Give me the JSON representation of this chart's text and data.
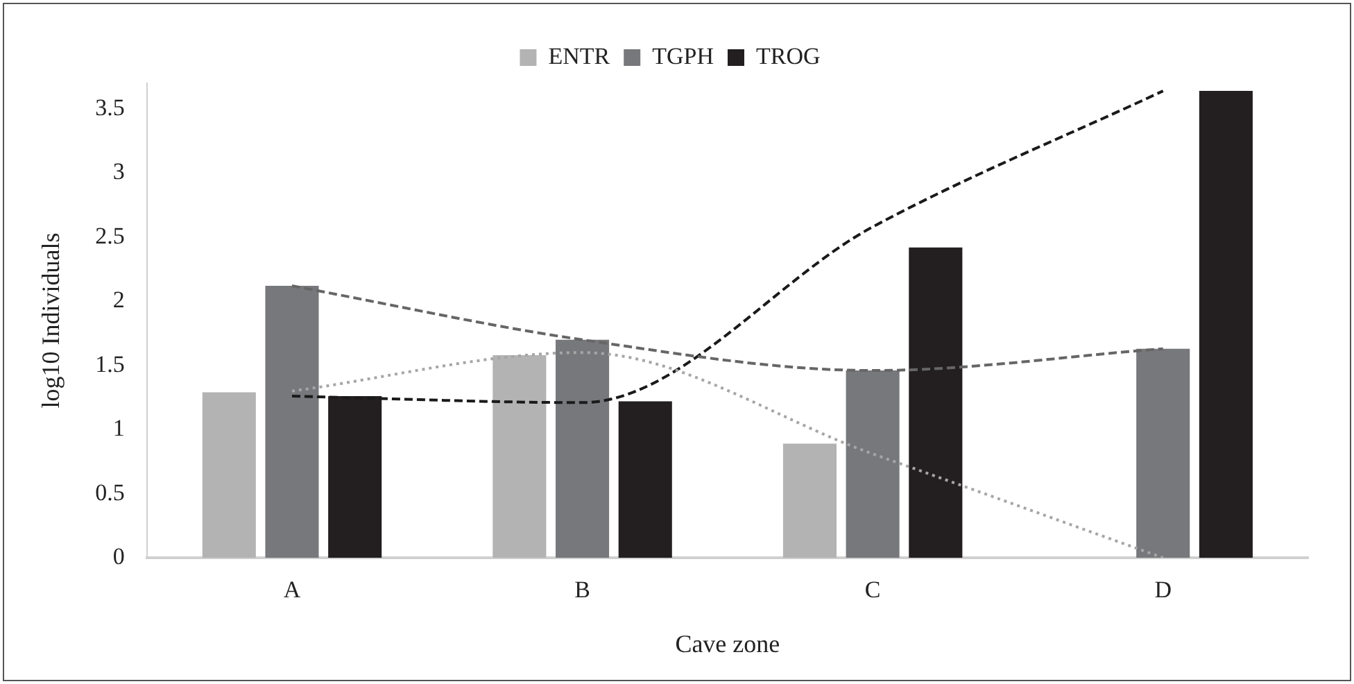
{
  "chart_data": {
    "type": "bar",
    "xlabel": "Cave zone",
    "ylabel": "log10 Individuals",
    "categories": [
      "A",
      "B",
      "C",
      "D"
    ],
    "series": [
      {
        "name": "ENTR",
        "color": "#b3b3b3",
        "values": [
          1.29,
          1.58,
          0.89,
          0
        ]
      },
      {
        "name": "TGPH",
        "color": "#77787b",
        "values": [
          2.12,
          1.7,
          1.46,
          1.63
        ]
      },
      {
        "name": "TROG",
        "color": "#231f20",
        "values": [
          1.26,
          1.22,
          2.42,
          3.64
        ]
      },
      {
        "type": "line",
        "x": [
          "A",
          "B",
          "C",
          "D"
        ],
        "color": "#a6a6a6",
        "line_style": "dotted",
        "values": [
          1.3,
          1.6,
          0.81,
          0
        ]
      },
      {
        "type": "line",
        "x": [
          "A",
          "B",
          "C",
          "D"
        ],
        "color": "#666666",
        "line_style": "dashed",
        "values": [
          2.12,
          1.7,
          1.46,
          1.63
        ]
      },
      {
        "type": "line",
        "x": [
          "A",
          "B",
          "C",
          "D"
        ],
        "color": "#1a1a1a",
        "line_style": "dashed",
        "values": [
          1.26,
          1.21,
          2.58,
          3.64
        ]
      }
    ],
    "ylim": [
      0,
      3.7
    ],
    "yticks": [
      0,
      0.5,
      1,
      1.5,
      2,
      2.5,
      3,
      3.5
    ],
    "grid": false,
    "legend": "top",
    "marker": "none"
  }
}
